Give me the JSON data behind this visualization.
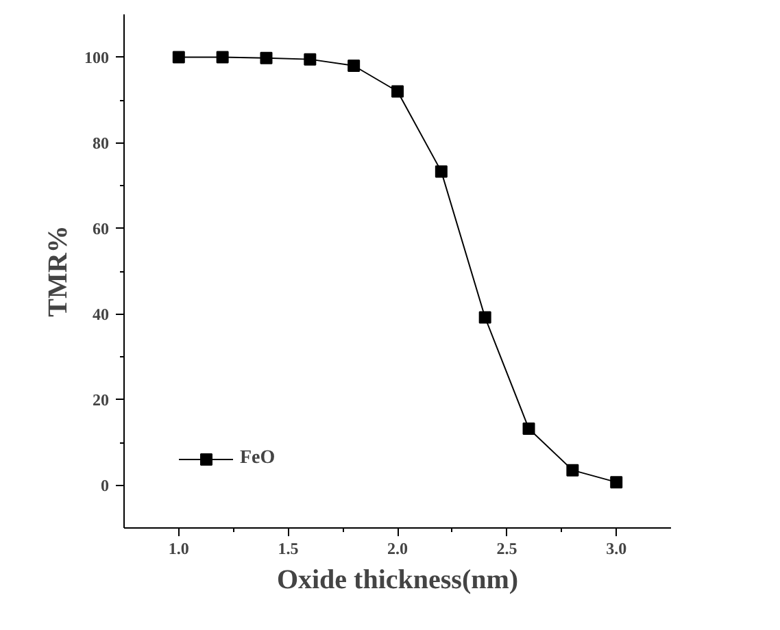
{
  "chart_data": {
    "type": "line",
    "xlabel": "Oxide thickness(nm)",
    "ylabel": "TMR%",
    "x": [
      1.0,
      1.2,
      1.4,
      1.6,
      1.8,
      2.0,
      2.2,
      2.4,
      2.6,
      2.8,
      3.0
    ],
    "series": [
      {
        "name": "FeO",
        "color": "#000000",
        "values": [
          100,
          100,
          99.8,
          99.5,
          98,
          92,
          73.3,
          39.2,
          13.2,
          3.5,
          0.7
        ]
      }
    ],
    "xlim": [
      0.75,
      3.25
    ],
    "ylim": [
      -10,
      110
    ],
    "xticks": [
      {
        "value": 1.0,
        "label": "1.0"
      },
      {
        "value": 1.5,
        "label": "1.5"
      },
      {
        "value": 2.0,
        "label": "2.0"
      },
      {
        "value": 2.5,
        "label": "2.5"
      },
      {
        "value": 3.0,
        "label": "3.0"
      }
    ],
    "yticks": [
      0,
      20,
      40,
      60,
      80,
      100
    ],
    "marker": "square",
    "line_style": "solid",
    "legend": "bottom left",
    "grid": false
  }
}
